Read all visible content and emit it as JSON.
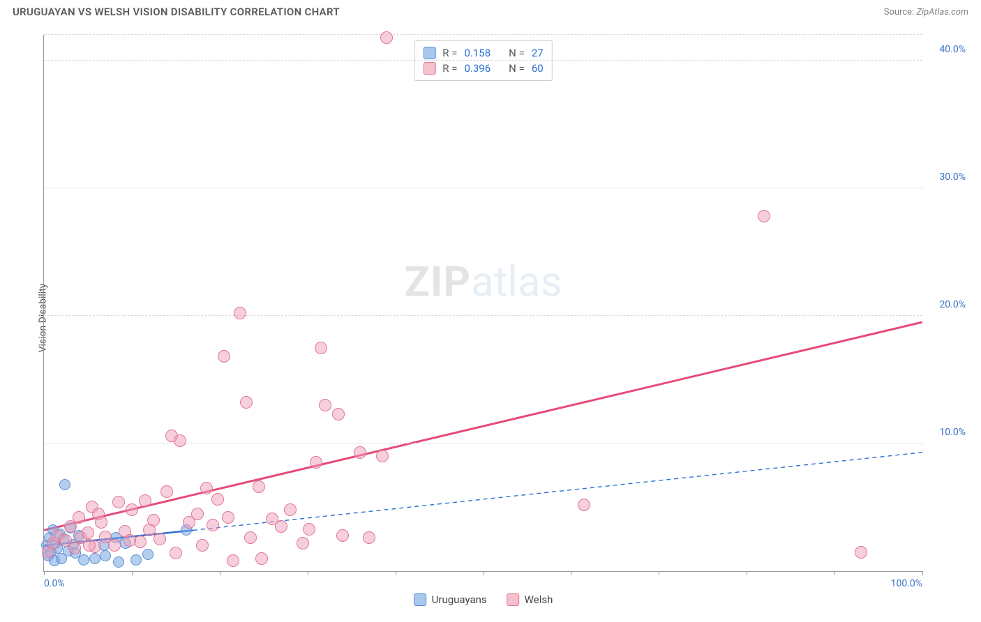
{
  "header": {
    "title": "URUGUAYAN VS WELSH VISION DISABILITY CORRELATION CHART",
    "source_label": "Source:",
    "source_value": "ZipAtlas.com"
  },
  "chart": {
    "type": "scatter",
    "ylabel": "Vision Disability",
    "watermark_a": "ZIP",
    "watermark_b": "atlas",
    "xlim": [
      0,
      100
    ],
    "ylim": [
      0,
      42
    ],
    "x_ticks": [
      0,
      10,
      20,
      30,
      40,
      50,
      60,
      70,
      80,
      90,
      100
    ],
    "x_tick_labels": {
      "0": "0.0%",
      "100": "100.0%"
    },
    "y_ticks": [
      10,
      20,
      30,
      40
    ],
    "y_tick_labels": {
      "10": "10.0%",
      "20": "20.0%",
      "30": "30.0%",
      "40": "40.0%"
    },
    "y_grid": [
      10,
      20,
      30,
      40,
      42
    ],
    "background_color": "#ffffff",
    "grid_color": "#d8d8d8",
    "axis_color": "#999999",
    "label_fontsize": 14,
    "tick_color": "#3a72c4",
    "stats_box": {
      "rows": [
        {
          "swatch_fill": "#a8c7ef",
          "swatch_border": "#5a8fd6",
          "r_label": "R =",
          "r": "0.158",
          "n_label": "N =",
          "n": "27"
        },
        {
          "swatch_fill": "#f6c1cd",
          "swatch_border": "#e07594",
          "r_label": "R =",
          "r": "0.396",
          "n_label": "N =",
          "n": "60"
        }
      ]
    },
    "legend": {
      "items": [
        {
          "swatch_fill": "#a8c7ef",
          "swatch_border": "#5a8fd6",
          "label": "Uruguayans"
        },
        {
          "swatch_fill": "#f6c1cd",
          "swatch_border": "#e07594",
          "label": "Welsh"
        }
      ]
    },
    "series": [
      {
        "name": "Uruguayans",
        "color_fill": "rgba(120,165,225,0.55)",
        "color_stroke": "#5a8fd6",
        "marker_radius": 8,
        "trend": {
          "x1": 0,
          "y1": 2.0,
          "x2": 17,
          "y2": 3.2,
          "color": "#2a6fd6",
          "width": 2.5,
          "dash": "none",
          "ext_x2": 100,
          "ext_y2": 9.3,
          "ext_dash": "6,5",
          "ext_width": 1.4
        },
        "points": [
          [
            0.3,
            2.0
          ],
          [
            0.5,
            1.2
          ],
          [
            0.6,
            2.6
          ],
          [
            0.8,
            1.5
          ],
          [
            1.0,
            3.2
          ],
          [
            1.2,
            0.8
          ],
          [
            1.3,
            2.2
          ],
          [
            1.5,
            1.8
          ],
          [
            1.8,
            2.9
          ],
          [
            2.0,
            1.0
          ],
          [
            2.2,
            2.5
          ],
          [
            2.4,
            6.8
          ],
          [
            2.8,
            1.6
          ],
          [
            3.0,
            3.4
          ],
          [
            3.3,
            2.1
          ],
          [
            3.6,
            1.4
          ],
          [
            4.0,
            2.8
          ],
          [
            4.5,
            0.9
          ],
          [
            5.8,
            1.0
          ],
          [
            6.8,
            2.0
          ],
          [
            7.0,
            1.2
          ],
          [
            8.2,
            2.6
          ],
          [
            8.5,
            0.7
          ],
          [
            9.3,
            2.2
          ],
          [
            10.5,
            0.9
          ],
          [
            11.8,
            1.3
          ],
          [
            16.2,
            3.2
          ]
        ]
      },
      {
        "name": "Welsh",
        "color_fill": "rgba(240,160,185,0.50)",
        "color_stroke": "#e07594",
        "marker_radius": 9,
        "trend": {
          "x1": 0,
          "y1": 3.2,
          "x2": 100,
          "y2": 19.5,
          "color": "#e64b78",
          "width": 3,
          "dash": "none"
        },
        "points": [
          [
            0.5,
            1.5
          ],
          [
            1.0,
            2.2
          ],
          [
            1.5,
            2.8
          ],
          [
            2.5,
            2.4
          ],
          [
            3.0,
            3.5
          ],
          [
            3.5,
            1.8
          ],
          [
            4.0,
            4.2
          ],
          [
            4.2,
            2.6
          ],
          [
            5.0,
            3.0
          ],
          [
            5.5,
            5.0
          ],
          [
            5.8,
            1.9
          ],
          [
            6.2,
            4.5
          ],
          [
            7.0,
            2.7
          ],
          [
            8.0,
            2.0
          ],
          [
            8.5,
            5.4
          ],
          [
            9.2,
            3.1
          ],
          [
            10.0,
            4.8
          ],
          [
            11.0,
            2.3
          ],
          [
            11.5,
            5.5
          ],
          [
            12.5,
            4.0
          ],
          [
            13.2,
            2.5
          ],
          [
            14.0,
            6.2
          ],
          [
            14.5,
            10.6
          ],
          [
            15.0,
            1.4
          ],
          [
            15.5,
            10.2
          ],
          [
            16.5,
            3.8
          ],
          [
            17.5,
            4.5
          ],
          [
            18.0,
            2.0
          ],
          [
            18.5,
            6.5
          ],
          [
            19.2,
            3.6
          ],
          [
            20.5,
            16.8
          ],
          [
            21.0,
            4.2
          ],
          [
            21.5,
            0.8
          ],
          [
            22.3,
            20.2
          ],
          [
            23.0,
            13.2
          ],
          [
            23.5,
            2.6
          ],
          [
            24.5,
            6.6
          ],
          [
            24.8,
            1.0
          ],
          [
            27.0,
            3.5
          ],
          [
            28.0,
            4.8
          ],
          [
            29.5,
            2.2
          ],
          [
            31.0,
            8.5
          ],
          [
            31.5,
            17.5
          ],
          [
            32.0,
            13.0
          ],
          [
            33.5,
            12.3
          ],
          [
            34.0,
            2.8
          ],
          [
            36.0,
            9.3
          ],
          [
            37.0,
            2.6
          ],
          [
            38.5,
            9.0
          ],
          [
            39.0,
            41.8
          ],
          [
            61.5,
            5.2
          ],
          [
            82.0,
            27.8
          ],
          [
            93.0,
            1.5
          ],
          [
            5.2,
            2.0
          ],
          [
            6.5,
            3.8
          ],
          [
            9.8,
            2.4
          ],
          [
            12.0,
            3.2
          ],
          [
            19.8,
            5.6
          ],
          [
            26.0,
            4.1
          ],
          [
            30.2,
            3.3
          ]
        ]
      }
    ]
  }
}
